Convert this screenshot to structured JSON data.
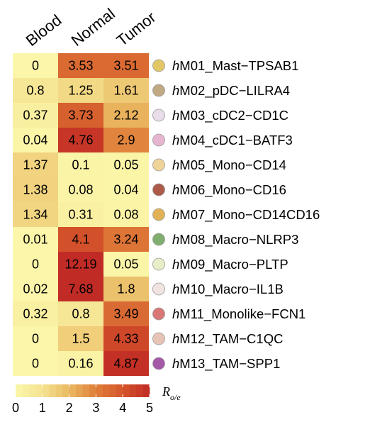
{
  "chart_data": {
    "type": "heatmap",
    "columns": [
      "Blood",
      "Normal",
      "Tumor"
    ],
    "rows": [
      {
        "prefix": "h",
        "name": "M01_Mast−TPSAB1",
        "dot_color": "#e2c765",
        "values": [
          0,
          3.53,
          3.51
        ]
      },
      {
        "prefix": "h",
        "name": "M02_pDC−LILRA4",
        "dot_color": "#c0a983",
        "values": [
          0.8,
          1.25,
          1.61
        ]
      },
      {
        "prefix": "h",
        "name": "M03_cDC2−CD1C",
        "dot_color": "#e8dde8",
        "values": [
          0.37,
          3.73,
          2.12
        ]
      },
      {
        "prefix": "h",
        "name": "M04_cDC1−BATF3",
        "dot_color": "#e6b6d1",
        "values": [
          0.04,
          4.76,
          2.9
        ]
      },
      {
        "prefix": "h",
        "name": "M05_Mono−CD14",
        "dot_color": "#efd49a",
        "values": [
          1.37,
          0.1,
          0.05
        ]
      },
      {
        "prefix": "h",
        "name": "M06_Mono−CD16",
        "dot_color": "#ad5a48",
        "values": [
          1.38,
          0.08,
          0.04
        ]
      },
      {
        "prefix": "h",
        "name": "M07_Mono−CD14CD16",
        "dot_color": "#e0b255",
        "values": [
          1.34,
          0.31,
          0.08
        ]
      },
      {
        "prefix": "h",
        "name": "M08_Macro−NLRP3",
        "dot_color": "#7fae6e",
        "values": [
          0.01,
          4.1,
          3.24
        ]
      },
      {
        "prefix": "h",
        "name": "M09_Macro−PLTP",
        "dot_color": "#e6eec7",
        "values": [
          0,
          12.19,
          0.05
        ]
      },
      {
        "prefix": "h",
        "name": "M10_Macro−IL1B",
        "dot_color": "#f1e3e0",
        "values": [
          0.02,
          7.68,
          1.8
        ]
      },
      {
        "prefix": "h",
        "name": "M11_Monolike−FCN1",
        "dot_color": "#d97777",
        "values": [
          0.32,
          0.8,
          3.49
        ]
      },
      {
        "prefix": "h",
        "name": "M12_TAM−C1QC",
        "dot_color": "#e7c3b6",
        "values": [
          0,
          1.5,
          4.33
        ]
      },
      {
        "prefix": "h",
        "name": "M13_TAM−SPP1",
        "dot_color": "#a458a6",
        "values": [
          0,
          0.16,
          4.87
        ]
      }
    ],
    "legend": {
      "title": "R",
      "title_subscript": "o/e",
      "range": [
        0,
        5
      ],
      "ticks": [
        0,
        1,
        2,
        3,
        4,
        5
      ],
      "tick_labels": [
        "0",
        "1",
        "2",
        "3",
        "4",
        "5"
      ],
      "bins": 20
    },
    "color_scale": [
      "#ffffcc",
      "#ffeda0",
      "#fed976",
      "#feb24c",
      "#fd8d3c",
      "#fc4e2a",
      "#e31a1c",
      "#bd0026",
      "#800026"
    ],
    "colormap_stops": [
      {
        "value": 0,
        "color": "#fbf6a9"
      },
      {
        "value": 1,
        "color": "#f5e391"
      },
      {
        "value": 2,
        "color": "#eab962"
      },
      {
        "value": 3,
        "color": "#e07f3a"
      },
      {
        "value": 4,
        "color": "#d4552b"
      },
      {
        "value": 5,
        "color": "#c12b25"
      }
    ]
  }
}
